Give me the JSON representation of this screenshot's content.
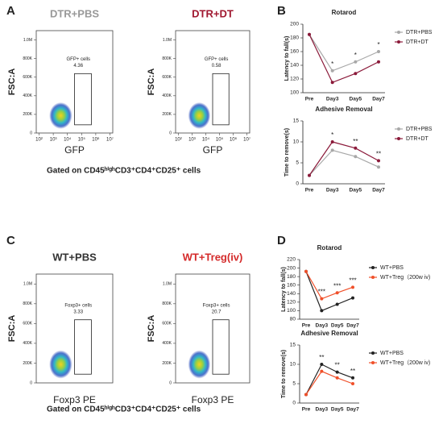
{
  "panel_labels": [
    "A",
    "B",
    "C",
    "D"
  ],
  "captions": [
    "Gated on CD45ʰⁱᵍʰCD3⁺CD4⁺CD25⁺ cells",
    "Gated on CD45ʰⁱᵍʰCD3⁺CD4⁺CD25⁺ cells"
  ],
  "chart_data": [
    {
      "type": "flow",
      "title": "DTR+PBS",
      "title_color": "#999999",
      "xlabel": "GFP",
      "ylabel": "FSC:A",
      "gate_label": "GFP+ cells",
      "gate_value": 4.36,
      "xlim": [
        1.8,
        7.2
      ],
      "xticks": [
        {
          "value": 2,
          "label": "10²"
        },
        {
          "value": 3,
          "label": "10³"
        },
        {
          "value": 4,
          "label": "10⁴"
        },
        {
          "value": 5,
          "label": "10⁵"
        },
        {
          "value": 6,
          "label": "10⁶"
        },
        {
          "value": 7,
          "label": "10⁷"
        }
      ],
      "ylim": [
        0,
        1100000
      ],
      "yticks": [
        0,
        {
          "value": 200000,
          "label": "200K"
        },
        {
          "value": 400000,
          "label": "400K"
        },
        {
          "value": 600000,
          "label": "600K"
        },
        {
          "value": 800000,
          "label": "800K"
        },
        {
          "value": 1000000,
          "label": "1.0M"
        }
      ]
    },
    {
      "type": "flow",
      "title": "DTR+DT",
      "title_color": "#a01830",
      "xlabel": "GFP",
      "ylabel": "FSC:A",
      "gate_label": "GFP+ cells",
      "gate_value": 0.58,
      "xlim": [
        1.8,
        7.2
      ],
      "xticks": [
        {
          "value": 2,
          "label": "10²"
        },
        {
          "value": 3,
          "label": "10³"
        },
        {
          "value": 4,
          "label": "10⁴"
        },
        {
          "value": 5,
          "label": "10⁵"
        },
        {
          "value": 6,
          "label": "10⁶"
        },
        {
          "value": 7,
          "label": "10⁷"
        }
      ],
      "ylim": [
        0,
        1100000
      ],
      "yticks": [
        0,
        {
          "value": 200000,
          "label": "200K"
        },
        {
          "value": 400000,
          "label": "400K"
        },
        {
          "value": 600000,
          "label": "600K"
        },
        {
          "value": 800000,
          "label": "800K"
        },
        {
          "value": 1000000,
          "label": "1.0M"
        }
      ]
    },
    {
      "type": "line",
      "title": "Rotarod",
      "ylabel": "Latency to fall(s)",
      "categories": [
        "Pre",
        "Day3",
        "Day5",
        "Day7"
      ],
      "ylim": [
        100,
        200
      ],
      "yticks": [
        100,
        120,
        140,
        160,
        180,
        200
      ],
      "annotations": [
        null,
        "*",
        "*",
        "*"
      ],
      "series": [
        {
          "name": "DTR+PBS",
          "color": "#a8a8a8",
          "values": [
            185,
            132,
            145,
            160
          ]
        },
        {
          "name": "DTR+DT",
          "color": "#8b1a3a",
          "values": [
            185,
            115,
            128,
            145
          ]
        }
      ]
    },
    {
      "type": "line",
      "title": "Adhesive Removal",
      "ylabel": "Time to remove(s)",
      "categories": [
        "Pre",
        "Day3",
        "Day5",
        "Day7"
      ],
      "ylim": [
        0,
        15
      ],
      "yticks": [
        0,
        5,
        10,
        15
      ],
      "annotations": [
        null,
        "*",
        "**",
        "**"
      ],
      "series": [
        {
          "name": "DTR+PBS",
          "color": "#a8a8a8",
          "values": [
            2,
            8,
            6.5,
            4
          ]
        },
        {
          "name": "DTR+DT",
          "color": "#8b1a3a",
          "values": [
            2,
            10,
            8.5,
            5.5
          ]
        }
      ]
    },
    {
      "type": "flow",
      "title": "WT+PBS",
      "title_color": "#333333",
      "xlabel": "Foxp3 PE",
      "ylabel": "FSC:A",
      "gate_label": "Foxp3+ cells",
      "gate_value": 3.33,
      "xlim": [
        1.8,
        7.2
      ],
      "xticks": [],
      "ylim": [
        0,
        1100000
      ],
      "yticks": [
        0,
        {
          "value": 200000,
          "label": "200K"
        },
        {
          "value": 400000,
          "label": "400K"
        },
        {
          "value": 600000,
          "label": "600K"
        },
        {
          "value": 800000,
          "label": "800K"
        },
        {
          "value": 1000000,
          "label": "1.0M"
        }
      ]
    },
    {
      "type": "flow",
      "title": "WT+Treg(iv)",
      "title_color": "#d42a2a",
      "xlabel": "Foxp3 PE",
      "ylabel": "FSC:A",
      "gate_label": "Foxp3+ cells",
      "gate_value": 20.7,
      "xlim": [
        1.8,
        7.2
      ],
      "xticks": [],
      "ylim": [
        0,
        1100000
      ],
      "yticks": [
        0,
        {
          "value": 200000,
          "label": "200K"
        },
        {
          "value": 400000,
          "label": "400K"
        },
        {
          "value": 600000,
          "label": "600K"
        },
        {
          "value": 800000,
          "label": "800K"
        },
        {
          "value": 1000000,
          "label": "1.0M"
        }
      ]
    },
    {
      "type": "line",
      "title": "Rotarod",
      "ylabel": "Latency to fall(s)",
      "categories": [
        "Pre",
        "Day3",
        "Day5",
        "Day7"
      ],
      "ylim": [
        80,
        220
      ],
      "yticks": [
        80,
        100,
        120,
        140,
        160,
        180,
        200,
        220
      ],
      "annotations": [
        null,
        "***",
        "***",
        "***"
      ],
      "series": [
        {
          "name": "WT+PBS",
          "color": "#222222",
          "values": [
            192,
            100,
            115,
            130
          ]
        },
        {
          "name": "WT+Treg（200w iv)",
          "color": "#f0502a",
          "values": [
            192,
            128,
            142,
            155
          ]
        }
      ]
    },
    {
      "type": "line",
      "title": "Adhesive Removal",
      "ylabel": "Time to remove(s)",
      "categories": [
        "Pre",
        "Day3",
        "Day5",
        "Day7"
      ],
      "ylim": [
        0,
        15
      ],
      "yticks": [
        0,
        5,
        10,
        15
      ],
      "annotations": [
        null,
        "**",
        "**",
        "**"
      ],
      "series": [
        {
          "name": "WT+PBS",
          "color": "#222222",
          "values": [
            2.2,
            10,
            8,
            6.5
          ]
        },
        {
          "name": "WT+Treg（200w iv)",
          "color": "#f0502a",
          "values": [
            2.2,
            8.2,
            6.5,
            5
          ]
        }
      ]
    }
  ]
}
